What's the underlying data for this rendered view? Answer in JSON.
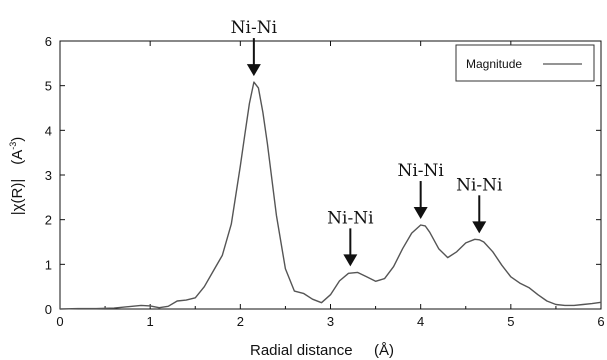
{
  "chart_data": {
    "type": "line",
    "xlabel": "Radial distance",
    "xlabel_unit": "(Å)",
    "ylabel": "|χ(R)|",
    "ylabel_unit": "(A",
    "ylabel_unit_exp": "-3",
    "ylabel_unit_close": ")",
    "xlim": [
      0,
      6
    ],
    "ylim": [
      0,
      6
    ],
    "x_ticks": [
      "0",
      "1",
      "2",
      "3",
      "4",
      "5",
      "6"
    ],
    "y_ticks": [
      "0",
      "1",
      "2",
      "3",
      "4",
      "5",
      "6"
    ],
    "grid": false,
    "legend": {
      "position": "top-right",
      "entries": [
        "Magnitude"
      ]
    },
    "series": [
      {
        "name": "Magnitude",
        "color": "#555555",
        "x": [
          0.0,
          0.2,
          0.4,
          0.6,
          0.8,
          0.9,
          1.0,
          1.1,
          1.2,
          1.3,
          1.4,
          1.5,
          1.6,
          1.7,
          1.8,
          1.9,
          2.0,
          2.05,
          2.1,
          2.15,
          2.2,
          2.25,
          2.3,
          2.4,
          2.5,
          2.6,
          2.7,
          2.8,
          2.9,
          3.0,
          3.1,
          3.2,
          3.3,
          3.4,
          3.5,
          3.6,
          3.7,
          3.8,
          3.9,
          4.0,
          4.05,
          4.1,
          4.2,
          4.3,
          4.4,
          4.5,
          4.6,
          4.65,
          4.7,
          4.8,
          4.9,
          5.0,
          5.1,
          5.2,
          5.3,
          5.4,
          5.5,
          5.6,
          5.7,
          5.8,
          5.9,
          6.0
        ],
        "y": [
          0.0,
          0.01,
          0.01,
          0.02,
          0.06,
          0.08,
          0.07,
          0.03,
          0.06,
          0.18,
          0.2,
          0.25,
          0.5,
          0.85,
          1.2,
          1.9,
          3.2,
          3.9,
          4.6,
          5.08,
          4.95,
          4.4,
          3.7,
          2.1,
          0.9,
          0.4,
          0.35,
          0.22,
          0.14,
          0.32,
          0.63,
          0.8,
          0.82,
          0.72,
          0.62,
          0.68,
          0.95,
          1.35,
          1.7,
          1.88,
          1.86,
          1.72,
          1.35,
          1.15,
          1.28,
          1.48,
          1.56,
          1.55,
          1.5,
          1.28,
          0.98,
          0.72,
          0.58,
          0.48,
          0.32,
          0.18,
          0.1,
          0.08,
          0.08,
          0.1,
          0.12,
          0.15
        ]
      }
    ],
    "annotations": [
      {
        "text": "Ni-Ni",
        "x": 2.15,
        "y": 5.08
      },
      {
        "text": "Ni-Ni",
        "x": 3.22,
        "y": 0.82
      },
      {
        "text": "Ni-Ni",
        "x": 4.0,
        "y": 1.88
      },
      {
        "text": "Ni-Ni",
        "x": 4.65,
        "y": 1.56
      }
    ]
  }
}
